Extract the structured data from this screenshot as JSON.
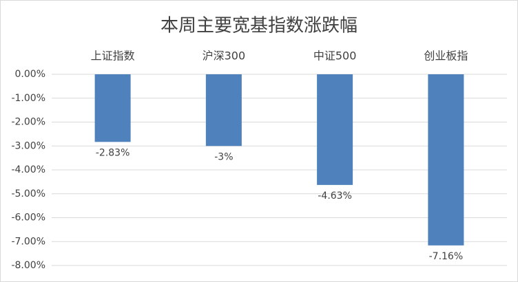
{
  "chart_data": {
    "type": "bar",
    "title": "本周主要宽基指数涨跌幅",
    "categories": [
      "上证指数",
      "沪深300",
      "中证500",
      "创业板指"
    ],
    "values": [
      -2.83,
      -3,
      -4.63,
      -7.16
    ],
    "value_labels": [
      "-2.83%",
      "-3%",
      "-4.63%",
      "-7.16%"
    ],
    "color": "#4f81bd",
    "ylim": [
      -8,
      0
    ],
    "yticks": [
      {
        "value": 0,
        "label": "0.00%"
      },
      {
        "value": -1,
        "label": "-1.00%"
      },
      {
        "value": -2,
        "label": "-2.00%"
      },
      {
        "value": -3,
        "label": "-3.00%"
      },
      {
        "value": -4,
        "label": "-4.00%"
      },
      {
        "value": -5,
        "label": "-5.00%"
      },
      {
        "value": -6,
        "label": "-6.00%"
      },
      {
        "value": -7,
        "label": "-7.00%"
      },
      {
        "value": -8,
        "label": "-8.00%"
      }
    ],
    "grid": true
  }
}
